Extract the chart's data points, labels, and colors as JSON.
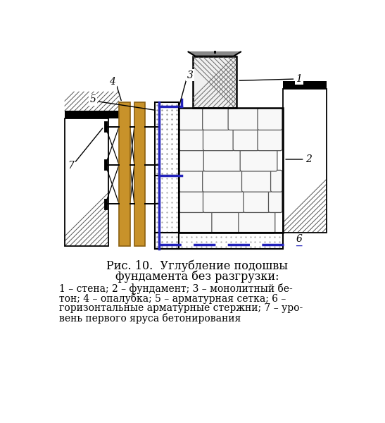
{
  "title_line1": "Рис. 10.  Углубление подошвы",
  "title_line2": "фундамента без разгрузки:",
  "cap_line1": "1 – стена; 2 – фундамент; 3 – монолитный бе-",
  "cap_line2": "тон; 4 – опалубка; 5 – арматурная сетка; 6 –",
  "cap_line3": "горизонтальные арматурные стержни; 7 – уро-",
  "cap_line4": "вень первого яруса бетонирования",
  "bg_color": "#ffffff",
  "wood_color": "#c8922a",
  "wood_dark": "#8b6010",
  "blue_color": "#2222bb",
  "line_color": "#000000",
  "hatch_color": "#555555"
}
